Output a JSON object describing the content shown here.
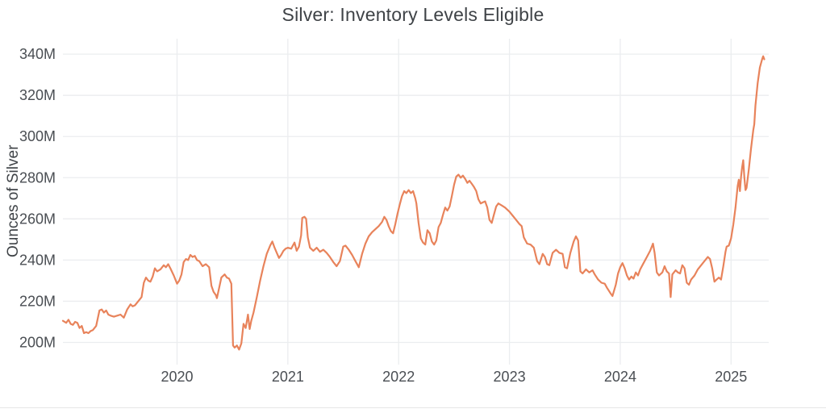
{
  "chart": {
    "title": "Silver: Inventory Levels Eligible",
    "ylabel": "Ounces of Silver"
  },
  "chart_data": {
    "type": "line",
    "title": "Silver: Inventory Levels Eligible",
    "xlabel": "",
    "ylabel": "Ounces of Silver",
    "unit": "million ounces",
    "grid": true,
    "legend": "none",
    "line_color": "#e8835b",
    "grid_color": "#ebedef",
    "text_color": "#4a4e53",
    "title_color": "#3f4347",
    "background": "#ffffff",
    "x_range": [
      2018.97,
      2025.34
    ],
    "y_range": [
      190,
      347.5
    ],
    "x_ticks": [
      2020,
      2021,
      2022,
      2023,
      2024,
      2025
    ],
    "x_tick_labels": [
      "2020",
      "2021",
      "2022",
      "2023",
      "2024",
      "2025"
    ],
    "y_ticks": [
      200,
      220,
      240,
      260,
      280,
      300,
      320,
      340
    ],
    "y_tick_labels": [
      "200M",
      "220M",
      "240M",
      "260M",
      "280M",
      "300M",
      "320M",
      "340M"
    ],
    "series": [
      {
        "name": "Eligible",
        "points": [
          [
            2018.97,
            210.5
          ],
          [
            2019.0,
            209.5
          ],
          [
            2019.02,
            211
          ],
          [
            2019.04,
            209
          ],
          [
            2019.06,
            208.5
          ],
          [
            2019.08,
            210
          ],
          [
            2019.1,
            209.5
          ],
          [
            2019.12,
            207
          ],
          [
            2019.14,
            208
          ],
          [
            2019.16,
            204.5
          ],
          [
            2019.18,
            205
          ],
          [
            2019.2,
            204.5
          ],
          [
            2019.22,
            205.5
          ],
          [
            2019.24,
            206
          ],
          [
            2019.27,
            208
          ],
          [
            2019.3,
            215.5
          ],
          [
            2019.32,
            216
          ],
          [
            2019.34,
            214.5
          ],
          [
            2019.36,
            215.5
          ],
          [
            2019.38,
            213.5
          ],
          [
            2019.4,
            213
          ],
          [
            2019.43,
            212.5
          ],
          [
            2019.46,
            213
          ],
          [
            2019.49,
            213.5
          ],
          [
            2019.52,
            212
          ],
          [
            2019.55,
            216
          ],
          [
            2019.58,
            218.5
          ],
          [
            2019.6,
            217.5
          ],
          [
            2019.62,
            218
          ],
          [
            2019.65,
            220
          ],
          [
            2019.68,
            222
          ],
          [
            2019.7,
            229
          ],
          [
            2019.72,
            231.5
          ],
          [
            2019.74,
            230
          ],
          [
            2019.76,
            229.5
          ],
          [
            2019.78,
            232
          ],
          [
            2019.8,
            236
          ],
          [
            2019.82,
            234.5
          ],
          [
            2019.85,
            235.5
          ],
          [
            2019.88,
            237.5
          ],
          [
            2019.9,
            236.5
          ],
          [
            2019.92,
            238
          ],
          [
            2019.94,
            236
          ],
          [
            2019.97,
            232.5
          ],
          [
            2020.0,
            228.5
          ],
          [
            2020.02,
            230
          ],
          [
            2020.04,
            233
          ],
          [
            2020.06,
            239
          ],
          [
            2020.08,
            240.5
          ],
          [
            2020.1,
            240
          ],
          [
            2020.12,
            242.5
          ],
          [
            2020.14,
            241.5
          ],
          [
            2020.16,
            242
          ],
          [
            2020.18,
            240
          ],
          [
            2020.2,
            239.5
          ],
          [
            2020.23,
            237
          ],
          [
            2020.26,
            238
          ],
          [
            2020.29,
            236.5
          ],
          [
            2020.31,
            227.5
          ],
          [
            2020.33,
            224.5
          ],
          [
            2020.35,
            223
          ],
          [
            2020.36,
            221.5
          ],
          [
            2020.38,
            226.5
          ],
          [
            2020.4,
            231.5
          ],
          [
            2020.43,
            233
          ],
          [
            2020.45,
            231.5
          ],
          [
            2020.47,
            231
          ],
          [
            2020.49,
            228.5
          ],
          [
            2020.505,
            198.5
          ],
          [
            2020.52,
            197.5
          ],
          [
            2020.54,
            198.5
          ],
          [
            2020.56,
            196.5
          ],
          [
            2020.58,
            199.5
          ],
          [
            2020.6,
            209
          ],
          [
            2020.62,
            207
          ],
          [
            2020.64,
            213.5
          ],
          [
            2020.655,
            206.5
          ],
          [
            2020.67,
            210.5
          ],
          [
            2020.69,
            214.5
          ],
          [
            2020.72,
            222
          ],
          [
            2020.75,
            230
          ],
          [
            2020.78,
            237
          ],
          [
            2020.81,
            243
          ],
          [
            2020.84,
            247
          ],
          [
            2020.86,
            249
          ],
          [
            2020.88,
            246
          ],
          [
            2020.9,
            243.5
          ],
          [
            2020.92,
            241
          ],
          [
            2020.94,
            242.5
          ],
          [
            2020.96,
            244.5
          ],
          [
            2020.98,
            245.5
          ],
          [
            2021.0,
            246
          ],
          [
            2021.03,
            245.5
          ],
          [
            2021.06,
            248.5
          ],
          [
            2021.08,
            244.5
          ],
          [
            2021.1,
            246.5
          ],
          [
            2021.12,
            252
          ],
          [
            2021.13,
            260.5
          ],
          [
            2021.15,
            261
          ],
          [
            2021.165,
            260
          ],
          [
            2021.18,
            251
          ],
          [
            2021.2,
            246
          ],
          [
            2021.23,
            244.5
          ],
          [
            2021.26,
            246
          ],
          [
            2021.29,
            244
          ],
          [
            2021.32,
            245
          ],
          [
            2021.35,
            243.5
          ],
          [
            2021.38,
            241.5
          ],
          [
            2021.41,
            239
          ],
          [
            2021.44,
            237
          ],
          [
            2021.47,
            239.5
          ],
          [
            2021.5,
            246.5
          ],
          [
            2021.52,
            247
          ],
          [
            2021.55,
            245
          ],
          [
            2021.58,
            242.5
          ],
          [
            2021.61,
            239.5
          ],
          [
            2021.64,
            236.5
          ],
          [
            2021.67,
            243
          ],
          [
            2021.7,
            248
          ],
          [
            2021.73,
            251.5
          ],
          [
            2021.76,
            253.5
          ],
          [
            2021.79,
            255
          ],
          [
            2021.82,
            256.5
          ],
          [
            2021.85,
            258.5
          ],
          [
            2021.87,
            261
          ],
          [
            2021.89,
            259.5
          ],
          [
            2021.91,
            256.5
          ],
          [
            2021.93,
            254
          ],
          [
            2021.95,
            253
          ],
          [
            2021.97,
            257.5
          ],
          [
            2021.99,
            262.5
          ],
          [
            2022.01,
            267
          ],
          [
            2022.03,
            271
          ],
          [
            2022.05,
            273.5
          ],
          [
            2022.07,
            272.5
          ],
          [
            2022.09,
            274
          ],
          [
            2022.11,
            272.5
          ],
          [
            2022.13,
            273.5
          ],
          [
            2022.15,
            270
          ],
          [
            2022.16,
            267.5
          ],
          [
            2022.18,
            258
          ],
          [
            2022.2,
            250.5
          ],
          [
            2022.22,
            248.5
          ],
          [
            2022.24,
            247.5
          ],
          [
            2022.26,
            254.5
          ],
          [
            2022.28,
            253
          ],
          [
            2022.3,
            249
          ],
          [
            2022.32,
            247.5
          ],
          [
            2022.34,
            249.5
          ],
          [
            2022.36,
            256
          ],
          [
            2022.38,
            258
          ],
          [
            2022.4,
            262
          ],
          [
            2022.42,
            265.5
          ],
          [
            2022.44,
            264
          ],
          [
            2022.46,
            266
          ],
          [
            2022.48,
            271
          ],
          [
            2022.5,
            276.5
          ],
          [
            2022.52,
            280.5
          ],
          [
            2022.54,
            281.5
          ],
          [
            2022.56,
            280
          ],
          [
            2022.58,
            281
          ],
          [
            2022.6,
            279.5
          ],
          [
            2022.62,
            277.5
          ],
          [
            2022.64,
            278.5
          ],
          [
            2022.66,
            277
          ],
          [
            2022.68,
            275.5
          ],
          [
            2022.7,
            273.5
          ],
          [
            2022.72,
            269.5
          ],
          [
            2022.74,
            267.5
          ],
          [
            2022.76,
            268
          ],
          [
            2022.78,
            268.5
          ],
          [
            2022.8,
            265.5
          ],
          [
            2022.82,
            259.5
          ],
          [
            2022.84,
            258
          ],
          [
            2022.86,
            262
          ],
          [
            2022.88,
            266
          ],
          [
            2022.9,
            267.5
          ],
          [
            2022.93,
            266.5
          ],
          [
            2022.96,
            265.5
          ],
          [
            2023.0,
            263.5
          ],
          [
            2023.03,
            261.5
          ],
          [
            2023.06,
            259.5
          ],
          [
            2023.09,
            257.5
          ],
          [
            2023.11,
            256.5
          ],
          [
            2023.13,
            251
          ],
          [
            2023.16,
            248
          ],
          [
            2023.19,
            247.5
          ],
          [
            2023.22,
            246
          ],
          [
            2023.25,
            239.5
          ],
          [
            2023.27,
            238
          ],
          [
            2023.3,
            243
          ],
          [
            2023.32,
            241.5
          ],
          [
            2023.34,
            238
          ],
          [
            2023.36,
            237.5
          ],
          [
            2023.39,
            243.5
          ],
          [
            2023.42,
            245
          ],
          [
            2023.45,
            243.5
          ],
          [
            2023.48,
            243
          ],
          [
            2023.5,
            236.5
          ],
          [
            2023.52,
            236
          ],
          [
            2023.55,
            243.5
          ],
          [
            2023.58,
            249
          ],
          [
            2023.6,
            251.5
          ],
          [
            2023.62,
            249.5
          ],
          [
            2023.64,
            234.5
          ],
          [
            2023.66,
            233.5
          ],
          [
            2023.69,
            235.5
          ],
          [
            2023.72,
            234
          ],
          [
            2023.75,
            235
          ],
          [
            2023.77,
            233
          ],
          [
            2023.8,
            230.5
          ],
          [
            2023.83,
            229
          ],
          [
            2023.86,
            228.5
          ],
          [
            2023.88,
            226.5
          ],
          [
            2023.91,
            224
          ],
          [
            2023.93,
            222.5
          ],
          [
            2023.96,
            228
          ],
          [
            2023.98,
            233.5
          ],
          [
            2024.0,
            236.5
          ],
          [
            2024.02,
            238.5
          ],
          [
            2024.04,
            236
          ],
          [
            2024.06,
            232.5
          ],
          [
            2024.08,
            230.5
          ],
          [
            2024.1,
            232
          ],
          [
            2024.12,
            231
          ],
          [
            2024.14,
            234
          ],
          [
            2024.16,
            232.5
          ],
          [
            2024.18,
            235.5
          ],
          [
            2024.21,
            238.5
          ],
          [
            2024.24,
            241.5
          ],
          [
            2024.27,
            244.5
          ],
          [
            2024.295,
            248
          ],
          [
            2024.31,
            243.5
          ],
          [
            2024.33,
            234
          ],
          [
            2024.35,
            232.5
          ],
          [
            2024.38,
            234
          ],
          [
            2024.4,
            237
          ],
          [
            2024.42,
            234.5
          ],
          [
            2024.44,
            233.5
          ],
          [
            2024.455,
            222
          ],
          [
            2024.47,
            233
          ],
          [
            2024.5,
            235
          ],
          [
            2024.52,
            234
          ],
          [
            2024.54,
            233.5
          ],
          [
            2024.56,
            237.5
          ],
          [
            2024.58,
            236
          ],
          [
            2024.6,
            229
          ],
          [
            2024.62,
            228
          ],
          [
            2024.64,
            230.5
          ],
          [
            2024.67,
            232.5
          ],
          [
            2024.7,
            235.5
          ],
          [
            2024.73,
            237.5
          ],
          [
            2024.76,
            239.5
          ],
          [
            2024.79,
            241.5
          ],
          [
            2024.81,
            240.5
          ],
          [
            2024.83,
            236
          ],
          [
            2024.85,
            229.5
          ],
          [
            2024.87,
            230.5
          ],
          [
            2024.89,
            231.5
          ],
          [
            2024.91,
            230.5
          ],
          [
            2024.93,
            237
          ],
          [
            2024.95,
            244
          ],
          [
            2024.96,
            246.5
          ],
          [
            2024.98,
            247
          ],
          [
            2025.0,
            250.5
          ],
          [
            2025.02,
            257
          ],
          [
            2025.04,
            265.5
          ],
          [
            2025.05,
            271
          ],
          [
            2025.06,
            276
          ],
          [
            2025.07,
            279
          ],
          [
            2025.08,
            273.5
          ],
          [
            2025.09,
            280.5
          ],
          [
            2025.1,
            285
          ],
          [
            2025.11,
            288.5
          ],
          [
            2025.12,
            280
          ],
          [
            2025.13,
            274
          ],
          [
            2025.14,
            275
          ],
          [
            2025.16,
            284
          ],
          [
            2025.18,
            294
          ],
          [
            2025.2,
            303
          ],
          [
            2025.21,
            306
          ],
          [
            2025.22,
            315
          ],
          [
            2025.24,
            326
          ],
          [
            2025.26,
            333.5
          ],
          [
            2025.28,
            337.5
          ],
          [
            2025.29,
            339
          ],
          [
            2025.3,
            337.5
          ]
        ]
      }
    ]
  }
}
